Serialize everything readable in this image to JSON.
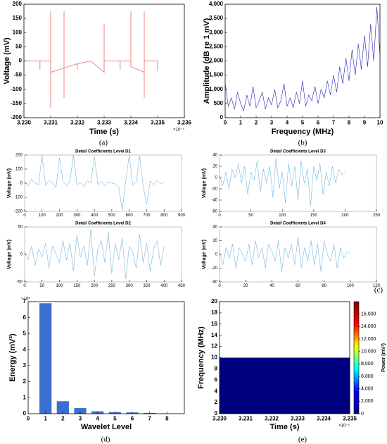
{
  "chart_data": [
    {
      "type": "line",
      "xlabel": "Time (s)",
      "ylabel": "Voltage (mV)",
      "x_multiplier": "×10⁻⁴",
      "panel_label": "(a)",
      "color": "#f08080",
      "x": [
        3.23,
        3.2306,
        3.2306,
        3.2306,
        3.231,
        3.231,
        3.231,
        3.231,
        3.2315,
        3.2315,
        3.2315,
        3.2315,
        3.232,
        3.232,
        3.232,
        3.2325,
        3.233,
        3.233,
        3.233,
        3.2336,
        3.2336,
        3.2336,
        3.234,
        3.234,
        3.234,
        3.2345,
        3.2345,
        3.2345,
        3.2345,
        3.235,
        3.235,
        3.235
      ],
      "values": [
        0,
        0,
        -30,
        0,
        0,
        175,
        -165,
        -40,
        -25,
        175,
        -130,
        -25,
        -10,
        -30,
        -10,
        0,
        -40,
        130,
        0,
        0,
        -30,
        0,
        0,
        175,
        -20,
        -40,
        175,
        -130,
        0,
        0,
        -35,
        0
      ],
      "xlim": [
        3.23,
        3.236
      ],
      "ylim": [
        -200,
        200
      ],
      "xticks": [
        {
          "value": 3.23,
          "label": "3.230"
        },
        {
          "value": 3.231,
          "label": "3.231"
        },
        {
          "value": 3.232,
          "label": "3.232"
        },
        {
          "value": 3.233,
          "label": "3.233"
        },
        {
          "value": 3.234,
          "label": "3.234"
        },
        {
          "value": 3.235,
          "label": "3.235"
        },
        {
          "value": 3.236,
          "label": "3.236"
        }
      ],
      "yticks": [
        -200,
        -150,
        -100,
        -50,
        0,
        50,
        100,
        150,
        200
      ]
    },
    {
      "type": "line",
      "xlabel": "Frequency (MHz)",
      "ylabel": "Amplitude (dB re 1 mV)",
      "panel_label": "(b)",
      "color": "#2222bb",
      "x": [
        0,
        0.2,
        0.4,
        0.6,
        0.8,
        1,
        1.2,
        1.4,
        1.6,
        1.8,
        2,
        2.2,
        2.4,
        2.6,
        2.8,
        3,
        3.2,
        3.4,
        3.6,
        3.8,
        4,
        4.2,
        4.4,
        4.6,
        4.8,
        5,
        5.2,
        5.4,
        5.6,
        5.8,
        6,
        6.2,
        6.4,
        6.6,
        6.8,
        7,
        7.2,
        7.4,
        7.6,
        7.8,
        8,
        8.2,
        8.4,
        8.6,
        8.8,
        9,
        9.2,
        9.4,
        9.6,
        9.8,
        10
      ],
      "values": [
        1200,
        400,
        700,
        300,
        900,
        500,
        250,
        800,
        400,
        1100,
        350,
        600,
        900,
        300,
        700,
        450,
        1000,
        350,
        600,
        1200,
        400,
        700,
        350,
        900,
        500,
        1300,
        400,
        800,
        600,
        1100,
        500,
        1000,
        700,
        1300,
        800,
        1500,
        900,
        1800,
        1200,
        2100,
        1300,
        2400,
        1500,
        2600,
        1700,
        2900,
        1800,
        3300,
        2000,
        3900,
        2200
      ],
      "xlim": [
        0,
        10
      ],
      "ylim": [
        0,
        4000
      ],
      "xticks": [
        0,
        1,
        2,
        3,
        4,
        5,
        6,
        7,
        8,
        9,
        10
      ],
      "yticks": [
        0,
        500,
        {
          "value": 1000,
          "label": "1,000"
        },
        {
          "value": 1500,
          "label": "1,500"
        },
        {
          "value": 2000,
          "label": "2,000"
        },
        {
          "value": 2500,
          "label": "2,500"
        },
        {
          "value": 3000,
          "label": "3,000"
        },
        {
          "value": 3500,
          "label": "3,500"
        },
        {
          "value": 4000,
          "label": "4,000"
        }
      ]
    },
    {
      "type": "line",
      "title": "Detail Coefficients Level D1",
      "ylabel": "Voltage (mV)",
      "color": "#5aaad8",
      "x": [
        0,
        20,
        40,
        60,
        80,
        100,
        120,
        140,
        160,
        180,
        200,
        220,
        240,
        260,
        280,
        300,
        320,
        340,
        360,
        380,
        400,
        420,
        440,
        460,
        480,
        500,
        520,
        540,
        560,
        580,
        600,
        620,
        640,
        660,
        680,
        700,
        720,
        740,
        760,
        780,
        800
      ],
      "values": [
        10,
        -20,
        30,
        0,
        -10,
        200,
        -15,
        20,
        5,
        -30,
        180,
        10,
        -20,
        15,
        200,
        -10,
        5,
        -25,
        20,
        0,
        190,
        -10,
        15,
        -20,
        10,
        0,
        -5,
        -30,
        -190,
        20,
        200,
        -10,
        5,
        190,
        -20,
        -150,
        15,
        -10,
        20,
        -5,
        10
      ],
      "xlim": [
        0,
        900
      ],
      "ylim": [
        -200,
        200
      ],
      "xticks": [
        0,
        100,
        200,
        300,
        400,
        500,
        600,
        700,
        800,
        900
      ],
      "yticks": [
        -200,
        -100,
        0,
        100,
        200
      ]
    },
    {
      "type": "line",
      "title": "Detail Coefficients Level D3",
      "ylabel": "Voltage (mV)",
      "color": "#5aaad8",
      "x": [
        0,
        5,
        10,
        15,
        20,
        25,
        30,
        35,
        40,
        45,
        50,
        55,
        60,
        65,
        70,
        75,
        80,
        85,
        90,
        95,
        100,
        105,
        110,
        115,
        120,
        125,
        130,
        135,
        140,
        145,
        150,
        155,
        160,
        165,
        170,
        175,
        180,
        185,
        190,
        195,
        200
      ],
      "values": [
        5,
        -15,
        10,
        -20,
        15,
        0,
        25,
        -10,
        20,
        -30,
        10,
        -5,
        30,
        -25,
        15,
        -10,
        20,
        -35,
        35,
        -20,
        10,
        -45,
        25,
        -15,
        20,
        -40,
        30,
        -10,
        15,
        -50,
        20,
        -5,
        25,
        -30,
        10,
        -15,
        20,
        -10,
        15,
        5,
        10
      ],
      "xlim": [
        0,
        250
      ],
      "ylim": [
        -60,
        40
      ],
      "xticks": [
        0,
        50,
        100,
        150,
        200,
        250
      ],
      "yticks": [
        -60,
        -40,
        -20,
        0,
        20,
        40
      ]
    },
    {
      "type": "line",
      "title": "Detail Coefficients Level D2",
      "ylabel": "Voltage (mV)",
      "color": "#5aaad8",
      "x": [
        0,
        10,
        20,
        30,
        40,
        50,
        60,
        70,
        80,
        90,
        100,
        110,
        120,
        130,
        140,
        150,
        160,
        170,
        180,
        190,
        200,
        210,
        220,
        230,
        240,
        250,
        260,
        270,
        280,
        290,
        300,
        310,
        320,
        330,
        340,
        350,
        360,
        370,
        380,
        390,
        400
      ],
      "values": [
        5,
        -10,
        15,
        -20,
        10,
        -5,
        20,
        -25,
        15,
        0,
        -15,
        25,
        -10,
        20,
        -30,
        35,
        -5,
        15,
        -20,
        45,
        -40,
        10,
        25,
        -15,
        40,
        -35,
        20,
        -10,
        30,
        -45,
        15,
        5,
        -25,
        35,
        -15,
        20,
        -30,
        10,
        25,
        -20,
        15
      ],
      "xlim": [
        0,
        450
      ],
      "ylim": [
        -50,
        50
      ],
      "xticks": [
        0,
        50,
        100,
        150,
        200,
        250,
        300,
        350,
        400,
        450
      ],
      "yticks": [
        -50,
        0,
        50
      ]
    },
    {
      "type": "line",
      "title": "Detail Coefficients Level D4",
      "ylabel": "Voltage (mV)",
      "panel_label": "(c)",
      "color": "#5aaad8",
      "x": [
        0,
        2.5,
        5,
        7.5,
        10,
        12.5,
        15,
        17.5,
        20,
        22.5,
        25,
        27.5,
        30,
        32.5,
        35,
        37.5,
        40,
        42.5,
        45,
        47.5,
        50,
        52.5,
        55,
        57.5,
        60,
        62.5,
        65,
        67.5,
        70,
        72.5,
        75,
        77.5,
        80,
        82.5,
        85,
        87.5,
        90,
        92.5,
        95,
        97.5,
        100
      ],
      "values": [
        5,
        -15,
        10,
        -5,
        15,
        -20,
        10,
        0,
        -10,
        15,
        -15,
        20,
        -5,
        10,
        -20,
        15,
        5,
        -10,
        20,
        -25,
        10,
        -5,
        15,
        -15,
        25,
        -20,
        10,
        -10,
        20,
        -15,
        15,
        -25,
        20,
        0,
        -10,
        15,
        -20,
        10,
        -5,
        5,
        0
      ],
      "xlim": [
        0,
        120
      ],
      "ylim": [
        -40,
        40
      ],
      "xticks": [
        0,
        20,
        40,
        60,
        80,
        100,
        120
      ],
      "yticks": [
        -40,
        -20,
        0,
        20,
        40
      ]
    },
    {
      "type": "bar",
      "xlabel": "Wavelet Level",
      "ylabel": "Energy (mV²)",
      "y_multiplier": "×10⁵",
      "panel_label": "(d)",
      "color": "#3a6fcf",
      "x": [
        1,
        2,
        3,
        4,
        5,
        6,
        7,
        8
      ],
      "values": [
        6.9,
        0.78,
        0.35,
        0.15,
        0.1,
        0.08,
        0.05,
        0.02
      ],
      "xlim": [
        0,
        9
      ],
      "ylim": [
        0,
        7
      ],
      "xticks": [
        0,
        1,
        2,
        3,
        4,
        5,
        6,
        7,
        8
      ],
      "yticks": [
        0,
        1,
        2,
        3,
        4,
        5,
        6,
        7
      ]
    },
    {
      "type": "heatmap",
      "xlabel": "Time (s)",
      "ylabel": "Frequency (MHz)",
      "x_multiplier": "×10⁻⁴",
      "panel_label": "(e)",
      "zlabel": "Power (mV²)",
      "x_bins": [
        3.23,
        3.231,
        3.232,
        3.233,
        3.234,
        3.235
      ],
      "y_bins": [
        0,
        10
      ],
      "z": [
        [
          0,
          0,
          0,
          0,
          0
        ]
      ],
      "colorscale": [
        "#00007f",
        "#0000ff",
        "#00ffff",
        "#ffff00",
        "#ff0000",
        "#7f0000"
      ],
      "xlim": [
        3.23,
        3.235
      ],
      "ylim": [
        0,
        20
      ],
      "zlim": [
        0,
        18000
      ],
      "xticks": [
        {
          "value": 3.23,
          "label": "3.230"
        },
        {
          "value": 3.231,
          "label": "3.231"
        },
        {
          "value": 3.232,
          "label": "3.232"
        },
        {
          "value": 3.233,
          "label": "3.233"
        },
        {
          "value": 3.234,
          "label": "3.234"
        },
        {
          "value": 3.235,
          "label": "3.235"
        }
      ],
      "yticks": [
        0,
        2,
        4,
        6,
        8,
        10,
        12,
        14,
        16,
        18,
        20
      ],
      "zticks": [
        0,
        {
          "value": 2000,
          "label": "2,000"
        },
        {
          "value": 4000,
          "label": "4,000"
        },
        {
          "value": 6000,
          "label": "6,000"
        },
        {
          "value": 8000,
          "label": "8,000"
        },
        {
          "value": 10000,
          "label": "10,000"
        },
        {
          "value": 12000,
          "label": "12,000"
        },
        {
          "value": 14000,
          "label": "14,000"
        },
        {
          "value": 16000,
          "label": "16,000"
        }
      ]
    }
  ]
}
